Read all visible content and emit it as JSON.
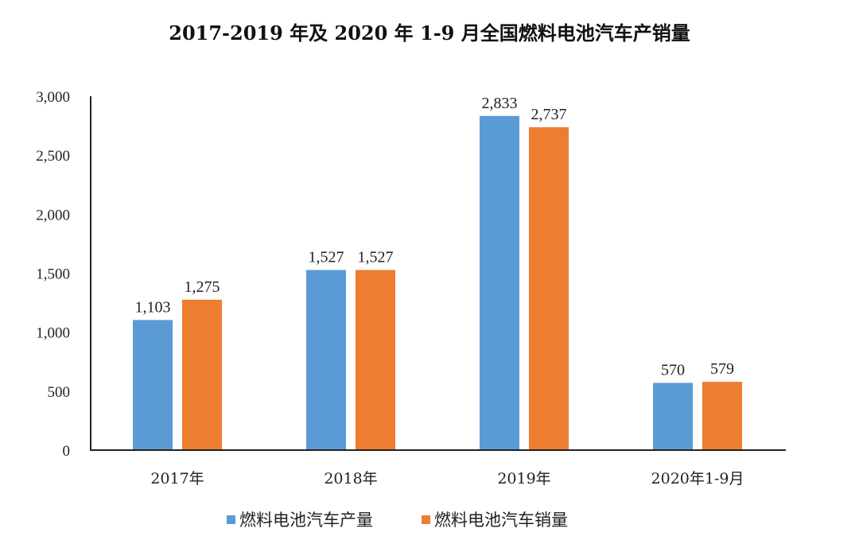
{
  "chart_data": {
    "type": "bar",
    "title": "2017-2019 年及 2020 年 1-9 月全国燃料电池汽车产销量",
    "categories": [
      "2017年",
      "2018年",
      "2019年",
      "2020年1-9月"
    ],
    "series": [
      {
        "name": "燃料电池汽车产量",
        "values": [
          1103,
          1527,
          2833,
          570
        ],
        "labels": [
          "1,103",
          "1,527",
          "2,833",
          "570"
        ],
        "color": "#5B9BD5"
      },
      {
        "name": "燃料电池汽车销量",
        "values": [
          1275,
          1527,
          2737,
          579
        ],
        "labels": [
          "1,275",
          "1,527",
          "2,737",
          "579"
        ],
        "color": "#ED7D31"
      }
    ],
    "ylim": [
      0,
      3000
    ],
    "yticks": [
      0,
      500,
      1000,
      1500,
      2000,
      2500,
      3000
    ],
    "ytick_labels": [
      "0",
      "500",
      "1,000",
      "1,500",
      "2,000",
      "2,500",
      "3,000"
    ],
    "grid": false,
    "legend_position": "bottom"
  }
}
